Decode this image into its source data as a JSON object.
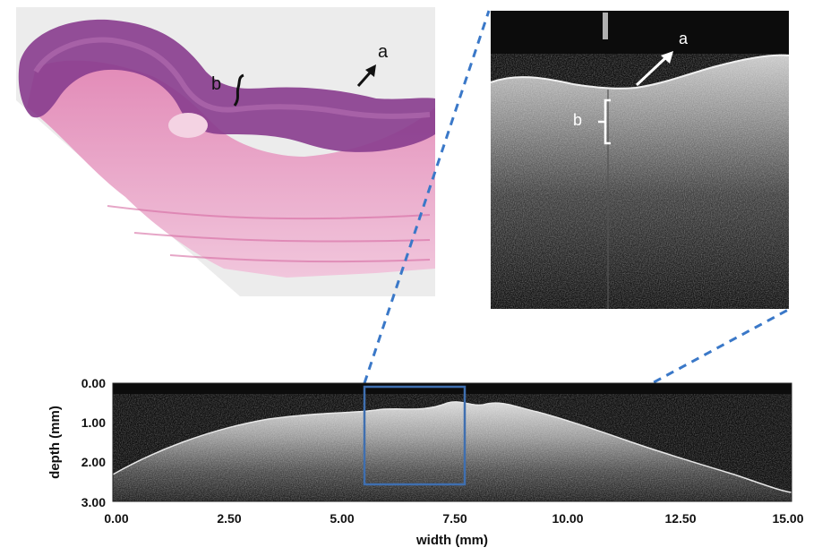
{
  "histology": {
    "label_a": "a",
    "label_b": "b"
  },
  "oct_zoom": {
    "label_a": "a",
    "label_b": "b"
  },
  "oct_scan": {
    "xlabel": "width (mm)",
    "ylabel": "depth (mm)",
    "xticks": [
      "0.00",
      "2.50",
      "5.00",
      "7.50",
      "10.00",
      "12.50",
      "15.00"
    ],
    "yticks": [
      "0.00",
      "1.00",
      "2.00",
      "3.00"
    ]
  },
  "colors": {
    "connector": "#3a78c8",
    "roi_box": "#3f6fb0",
    "he_purple": "#8a3f8f",
    "he_pink": "#e7a0c4"
  }
}
